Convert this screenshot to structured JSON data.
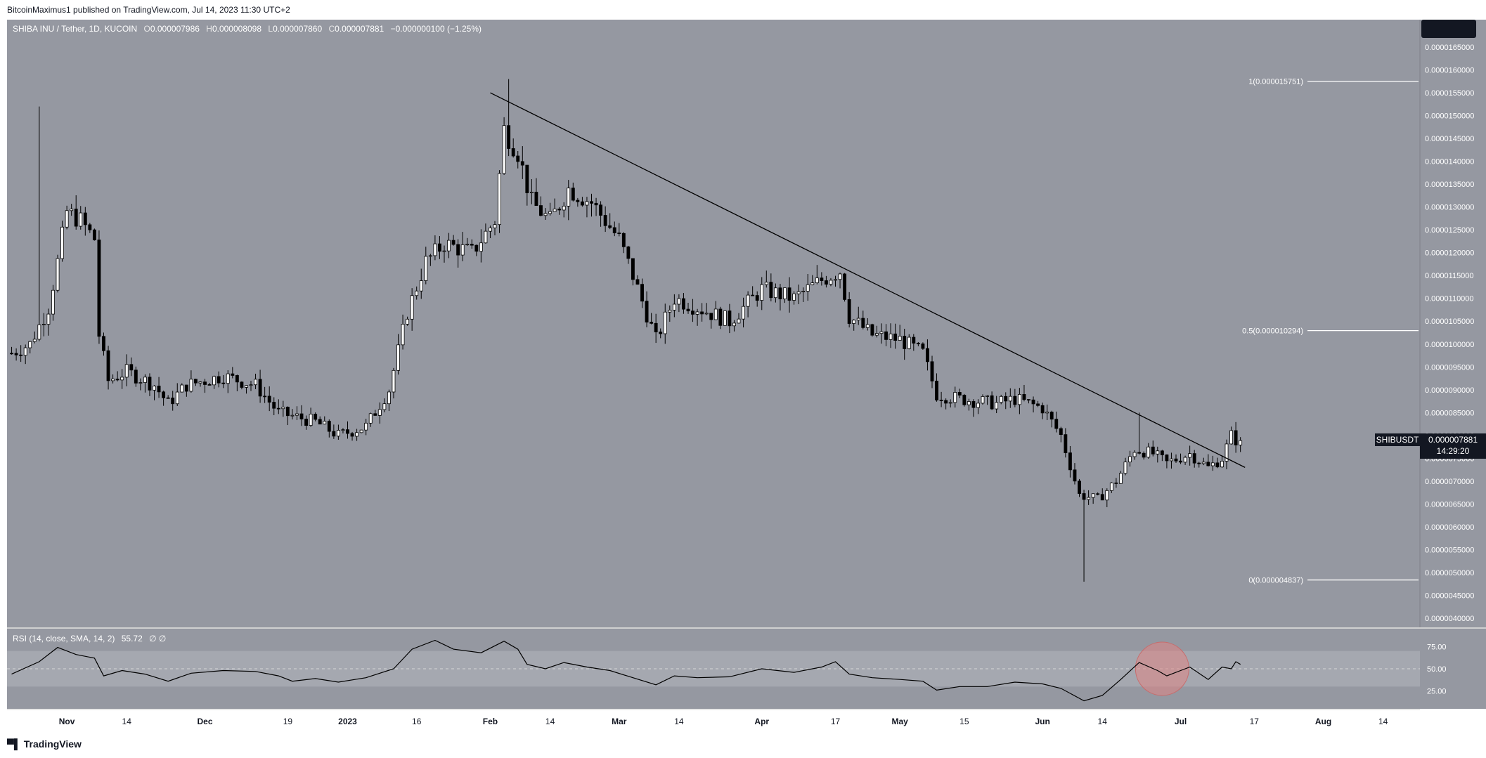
{
  "header": {
    "publisher": "BitcoinMaximus1 published on TradingView.com, Jul 14, 2023 11:30 UTC+2"
  },
  "footer": {
    "brand": "TradingView"
  },
  "legend": {
    "symbol": "SHIBA INU / Tether, 1D, KUCOIN",
    "o_label": "O",
    "o_value": "0.000007986",
    "h_label": "H",
    "h_value": "0.000008098",
    "l_label": "L",
    "l_value": "0.000007860",
    "c_label": "C",
    "c_value": "0.000007881",
    "change": "−0.000000100 (−1.25%)"
  },
  "rsi_legend": {
    "label": "RSI (14, close, SMA, 14, 2)",
    "value": "55.72",
    "extra": "∅ ∅"
  },
  "price_tag": {
    "symbol": "SHIBUSDT",
    "price": "0.000007881",
    "countdown": "14:29:20"
  },
  "colors": {
    "pane_bg": "#9598a1",
    "band": "#a5a8b0",
    "up_fill": "#ffffff",
    "down_fill": "#000000",
    "circle": "#e08585"
  },
  "chart_data": {
    "type": "candlestick",
    "title": "SHIBA INU / Tether, 1D, KUCOIN",
    "ylim": [
      3.8e-06,
      1.71e-05
    ],
    "y_ticks": [
      "0.0000165000",
      "0.0000160000",
      "0.0000155000",
      "0.0000150000",
      "0.0000145000",
      "0.0000140000",
      "0.0000135000",
      "0.0000130000",
      "0.0000125000",
      "0.0000120000",
      "0.0000115000",
      "0.0000110000",
      "0.0000105000",
      "0.0000100000",
      "0.0000095000",
      "0.0000090000",
      "0.0000085000",
      "0.0000080000",
      "0.0000075000",
      "0.0000070000",
      "0.0000065000",
      "0.0000060000",
      "0.0000055000",
      "0.0000050000",
      "0.0000045000",
      "0.0000040000"
    ],
    "x_ticks": [
      {
        "label": "Nov",
        "date": "2022-11-01"
      },
      {
        "label": "14",
        "date": "2022-11-14"
      },
      {
        "label": "Dec",
        "date": "2022-12-01"
      },
      {
        "label": "19",
        "date": "2022-12-19"
      },
      {
        "label": "2023",
        "date": "2023-01-01"
      },
      {
        "label": "16",
        "date": "2023-01-16"
      },
      {
        "label": "Feb",
        "date": "2023-02-01"
      },
      {
        "label": "14",
        "date": "2023-02-14"
      },
      {
        "label": "Mar",
        "date": "2023-03-01"
      },
      {
        "label": "14",
        "date": "2023-03-14"
      },
      {
        "label": "Apr",
        "date": "2023-04-01"
      },
      {
        "label": "17",
        "date": "2023-04-17"
      },
      {
        "label": "May",
        "date": "2023-05-01"
      },
      {
        "label": "15",
        "date": "2023-05-15"
      },
      {
        "label": "Jun",
        "date": "2023-06-01"
      },
      {
        "label": "14",
        "date": "2023-06-14"
      },
      {
        "label": "Jul",
        "date": "2023-07-01"
      },
      {
        "label": "17",
        "date": "2023-07-17"
      },
      {
        "label": "Aug",
        "date": "2023-08-01"
      },
      {
        "label": "14",
        "date": "2023-08-14"
      }
    ],
    "close_path": [
      {
        "d": "2022-10-20",
        "v": 9.8e-06
      },
      {
        "d": "2022-10-24",
        "v": 1e-05
      },
      {
        "d": "2022-10-28",
        "v": 1.08e-05
      },
      {
        "d": "2022-10-30",
        "v": 1.18e-05
      },
      {
        "d": "2022-11-01",
        "v": 1.29e-05
      },
      {
        "d": "2022-11-04",
        "v": 1.27e-05
      },
      {
        "d": "2022-11-07",
        "v": 1.23e-05
      },
      {
        "d": "2022-11-08",
        "v": 1.02e-05
      },
      {
        "d": "2022-11-10",
        "v": 9.2e-06
      },
      {
        "d": "2022-11-14",
        "v": 9.4e-06
      },
      {
        "d": "2022-11-20",
        "v": 9.1e-06
      },
      {
        "d": "2022-11-23",
        "v": 8.7e-06
      },
      {
        "d": "2022-11-27",
        "v": 9.1e-06
      },
      {
        "d": "2022-12-05",
        "v": 9.3e-06
      },
      {
        "d": "2022-12-12",
        "v": 9.1e-06
      },
      {
        "d": "2022-12-17",
        "v": 8.5e-06
      },
      {
        "d": "2022-12-25",
        "v": 8.3e-06
      },
      {
        "d": "2022-12-30",
        "v": 8e-06
      },
      {
        "d": "2023-01-05",
        "v": 8.2e-06
      },
      {
        "d": "2023-01-10",
        "v": 9e-06
      },
      {
        "d": "2023-01-14",
        "v": 1.07e-05
      },
      {
        "d": "2023-01-18",
        "v": 1.18e-05
      },
      {
        "d": "2023-01-22",
        "v": 1.22e-05
      },
      {
        "d": "2023-01-28",
        "v": 1.2e-05
      },
      {
        "d": "2023-02-02",
        "v": 1.27e-05
      },
      {
        "d": "2023-02-04",
        "v": 1.47e-05
      },
      {
        "d": "2023-02-07",
        "v": 1.42e-05
      },
      {
        "d": "2023-02-10",
        "v": 1.31e-05
      },
      {
        "d": "2023-02-14",
        "v": 1.27e-05
      },
      {
        "d": "2023-02-18",
        "v": 1.34e-05
      },
      {
        "d": "2023-02-23",
        "v": 1.31e-05
      },
      {
        "d": "2023-03-01",
        "v": 1.23e-05
      },
      {
        "d": "2023-03-04",
        "v": 1.15e-05
      },
      {
        "d": "2023-03-09",
        "v": 1.01e-05
      },
      {
        "d": "2023-03-13",
        "v": 1.1e-05
      },
      {
        "d": "2023-03-18",
        "v": 1.08e-05
      },
      {
        "d": "2023-03-25",
        "v": 1.05e-05
      },
      {
        "d": "2023-04-01",
        "v": 1.12e-05
      },
      {
        "d": "2023-04-08",
        "v": 1.1e-05
      },
      {
        "d": "2023-04-14",
        "v": 1.14e-05
      },
      {
        "d": "2023-04-18",
        "v": 1.16e-05
      },
      {
        "d": "2023-04-20",
        "v": 1.06e-05
      },
      {
        "d": "2023-04-25",
        "v": 1.02e-05
      },
      {
        "d": "2023-05-01",
        "v": 1.01e-05
      },
      {
        "d": "2023-05-06",
        "v": 9.8e-06
      },
      {
        "d": "2023-05-09",
        "v": 8.9e-06
      },
      {
        "d": "2023-05-14",
        "v": 8.8e-06
      },
      {
        "d": "2023-05-22",
        "v": 8.7e-06
      },
      {
        "d": "2023-05-26",
        "v": 8.8e-06
      },
      {
        "d": "2023-06-01",
        "v": 8.6e-06
      },
      {
        "d": "2023-06-05",
        "v": 8e-06
      },
      {
        "d": "2023-06-09",
        "v": 6.7e-06
      },
      {
        "d": "2023-06-13",
        "v": 6.6e-06
      },
      {
        "d": "2023-06-17",
        "v": 7e-06
      },
      {
        "d": "2023-06-21",
        "v": 7.7e-06
      },
      {
        "d": "2023-06-25",
        "v": 7.6e-06
      },
      {
        "d": "2023-06-28",
        "v": 7.4e-06
      },
      {
        "d": "2023-07-03",
        "v": 7.6e-06
      },
      {
        "d": "2023-07-07",
        "v": 7.3e-06
      },
      {
        "d": "2023-07-10",
        "v": 7.5e-06
      },
      {
        "d": "2023-07-12",
        "v": 8e-06
      },
      {
        "d": "2023-07-14",
        "v": 7.8e-06
      }
    ],
    "wicks": [
      {
        "d": "2022-10-26",
        "high": 1.52e-05
      },
      {
        "d": "2023-02-05",
        "high": 1.58e-05
      },
      {
        "d": "2023-06-10",
        "low": 4.8e-06
      },
      {
        "d": "2023-06-22",
        "high": 8.5e-06
      }
    ],
    "trendline": {
      "from": {
        "d": "2023-02-01",
        "v": 1.55e-05
      },
      "to": {
        "d": "2023-07-15",
        "v": 7.3e-06
      }
    },
    "fib_levels": [
      {
        "label": "1(0.000015751)",
        "value": 1.5751e-05
      },
      {
        "label": "0.5(0.000010294)",
        "value": 1.0294e-05
      },
      {
        "label": "0(0.000004837)",
        "value": 4.837e-06
      }
    ],
    "rsi": {
      "ylim": [
        5,
        95
      ],
      "ticks": [
        "75.00",
        "50.00",
        "25.00"
      ],
      "band": [
        30,
        70
      ],
      "points": [
        {
          "d": "2022-10-20",
          "v": 44
        },
        {
          "d": "2022-10-26",
          "v": 58
        },
        {
          "d": "2022-10-30",
          "v": 74
        },
        {
          "d": "2022-11-03",
          "v": 66
        },
        {
          "d": "2022-11-07",
          "v": 62
        },
        {
          "d": "2022-11-09",
          "v": 42
        },
        {
          "d": "2022-11-13",
          "v": 48
        },
        {
          "d": "2022-11-18",
          "v": 44
        },
        {
          "d": "2022-11-23",
          "v": 36
        },
        {
          "d": "2022-11-28",
          "v": 45
        },
        {
          "d": "2022-12-05",
          "v": 48
        },
        {
          "d": "2022-12-12",
          "v": 47
        },
        {
          "d": "2022-12-17",
          "v": 42
        },
        {
          "d": "2022-12-20",
          "v": 36
        },
        {
          "d": "2022-12-25",
          "v": 39
        },
        {
          "d": "2022-12-30",
          "v": 35
        },
        {
          "d": "2023-01-05",
          "v": 40
        },
        {
          "d": "2023-01-11",
          "v": 50
        },
        {
          "d": "2023-01-15",
          "v": 72
        },
        {
          "d": "2023-01-20",
          "v": 82
        },
        {
          "d": "2023-01-24",
          "v": 72
        },
        {
          "d": "2023-01-30",
          "v": 68
        },
        {
          "d": "2023-02-04",
          "v": 81
        },
        {
          "d": "2023-02-07",
          "v": 72
        },
        {
          "d": "2023-02-09",
          "v": 55
        },
        {
          "d": "2023-02-13",
          "v": 50
        },
        {
          "d": "2023-02-17",
          "v": 57
        },
        {
          "d": "2023-02-22",
          "v": 52
        },
        {
          "d": "2023-02-27",
          "v": 48
        },
        {
          "d": "2023-03-04",
          "v": 40
        },
        {
          "d": "2023-03-09",
          "v": 32
        },
        {
          "d": "2023-03-13",
          "v": 42
        },
        {
          "d": "2023-03-18",
          "v": 40
        },
        {
          "d": "2023-03-25",
          "v": 41
        },
        {
          "d": "2023-04-01",
          "v": 50
        },
        {
          "d": "2023-04-08",
          "v": 46
        },
        {
          "d": "2023-04-14",
          "v": 52
        },
        {
          "d": "2023-04-17",
          "v": 58
        },
        {
          "d": "2023-04-20",
          "v": 44
        },
        {
          "d": "2023-04-25",
          "v": 40
        },
        {
          "d": "2023-05-01",
          "v": 38
        },
        {
          "d": "2023-05-06",
          "v": 36
        },
        {
          "d": "2023-05-09",
          "v": 26
        },
        {
          "d": "2023-05-14",
          "v": 30
        },
        {
          "d": "2023-05-20",
          "v": 30
        },
        {
          "d": "2023-05-26",
          "v": 35
        },
        {
          "d": "2023-06-01",
          "v": 33
        },
        {
          "d": "2023-06-05",
          "v": 28
        },
        {
          "d": "2023-06-10",
          "v": 14
        },
        {
          "d": "2023-06-14",
          "v": 20
        },
        {
          "d": "2023-06-18",
          "v": 38
        },
        {
          "d": "2023-06-22",
          "v": 57
        },
        {
          "d": "2023-06-26",
          "v": 48
        },
        {
          "d": "2023-06-28",
          "v": 42
        },
        {
          "d": "2023-07-03",
          "v": 52
        },
        {
          "d": "2023-07-07",
          "v": 38
        },
        {
          "d": "2023-07-10",
          "v": 52
        },
        {
          "d": "2023-07-12",
          "v": 50
        },
        {
          "d": "2023-07-13",
          "v": 58
        },
        {
          "d": "2023-07-14",
          "v": 55
        }
      ],
      "highlight": {
        "d": "2023-06-27",
        "v": 50
      }
    }
  }
}
